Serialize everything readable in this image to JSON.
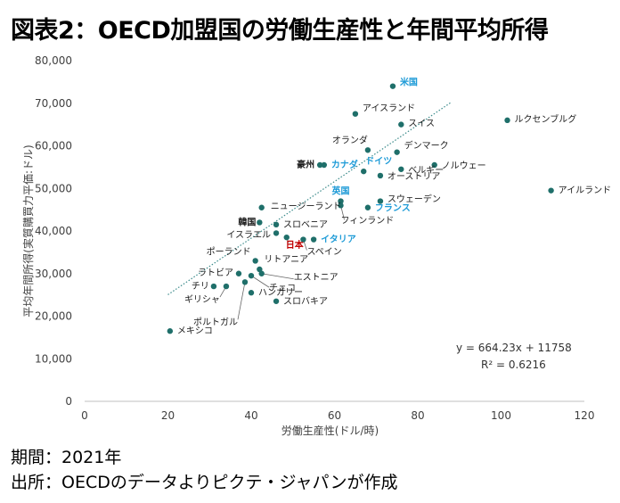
{
  "title": "図表2：OECD加盟国の労働生産性と年間平均所得",
  "period": "期間：2021年",
  "source": "出所：OECDのデータよりピクテ・ジャパンが作成",
  "colors": {
    "point": "#1f6f6a",
    "highlight_blue": "#1e9bd7",
    "highlight_red": "#c00000",
    "trend": "#3a8a8a"
  },
  "chart_data": {
    "type": "scatter",
    "xlabel": "労働生産性(ドル/時)",
    "ylabel": "平均年間所得(実質購買力平価:ドル)",
    "xlim": [
      0,
      120
    ],
    "ylim": [
      0,
      80000
    ],
    "x_ticks": [
      "0",
      "20",
      "40",
      "60",
      "80",
      "100",
      "120"
    ],
    "y_ticks": [
      "0",
      "10,000",
      "20,000",
      "30,000",
      "40,000",
      "50,000",
      "60,000",
      "70,000",
      "80,000"
    ],
    "grid": false,
    "trendline": {
      "slope": 664.23,
      "intercept": 11758
    },
    "equation": "y = 664.23x + 11758",
    "r_squared": "R² = 0.6216",
    "points": [
      {
        "name": "米国",
        "x": 74,
        "y": 74000,
        "color": "blue"
      },
      {
        "name": "アイスランド",
        "x": 65,
        "y": 67500
      },
      {
        "name": "スイス",
        "x": 76,
        "y": 65000
      },
      {
        "name": "ルクセンブルグ",
        "x": 101.5,
        "y": 66000
      },
      {
        "name": "オランダ",
        "x": 68,
        "y": 59000
      },
      {
        "name": "デンマーク",
        "x": 75,
        "y": 58500
      },
      {
        "name": "ノルウェー",
        "x": 84,
        "y": 55500
      },
      {
        "name": "ベルギー",
        "x": 76,
        "y": 54500
      },
      {
        "name": "オーストリア",
        "x": 71,
        "y": 53000
      },
      {
        "name": "ドイツ",
        "x": 67,
        "y": 54000,
        "color": "blue"
      },
      {
        "name": "豪州",
        "x": 56.5,
        "y": 55500
      },
      {
        "name": "カナダ",
        "x": 57.5,
        "y": 55500,
        "color": "blue"
      },
      {
        "name": "アイルランド",
        "x": 112,
        "y": 49500
      },
      {
        "name": "英国",
        "x": 61.5,
        "y": 47000,
        "color": "blue"
      },
      {
        "name": "スウェーデン",
        "x": 71,
        "y": 47000
      },
      {
        "name": "フランス",
        "x": 68,
        "y": 45500,
        "color": "blue"
      },
      {
        "name": "フィンランド",
        "x": 61.5,
        "y": 46000
      },
      {
        "name": "ニュージーランド",
        "x": 42.5,
        "y": 45500
      },
      {
        "name": "韓国",
        "x": 42,
        "y": 42000
      },
      {
        "name": "スロベニア",
        "x": 46,
        "y": 41500
      },
      {
        "name": "イスラエル",
        "x": 46,
        "y": 39500
      },
      {
        "name": "日本",
        "x": 48.5,
        "y": 38500,
        "color": "red"
      },
      {
        "name": "イタリア",
        "x": 55,
        "y": 38000,
        "color": "blue"
      },
      {
        "name": "スペイン",
        "x": 52.5,
        "y": 38000
      },
      {
        "name": "ポーランド",
        "x": 41,
        "y": 33000
      },
      {
        "name": "リトアニア",
        "x": 42,
        "y": 31000
      },
      {
        "name": "エストニア",
        "x": 42.5,
        "y": 30000
      },
      {
        "name": "ラトビア",
        "x": 37,
        "y": 30000
      },
      {
        "name": "チェコ",
        "x": 40,
        "y": 29500
      },
      {
        "name": "ポルトガル",
        "x": 38.5,
        "y": 28000
      },
      {
        "name": "チリ",
        "x": 31,
        "y": 27000
      },
      {
        "name": "ギリシャ",
        "x": 34,
        "y": 27000
      },
      {
        "name": "ハンガリー",
        "x": 40,
        "y": 25500
      },
      {
        "name": "スロバキア",
        "x": 46,
        "y": 23500
      },
      {
        "name": "メキシコ",
        "x": 20.5,
        "y": 16500
      }
    ]
  }
}
